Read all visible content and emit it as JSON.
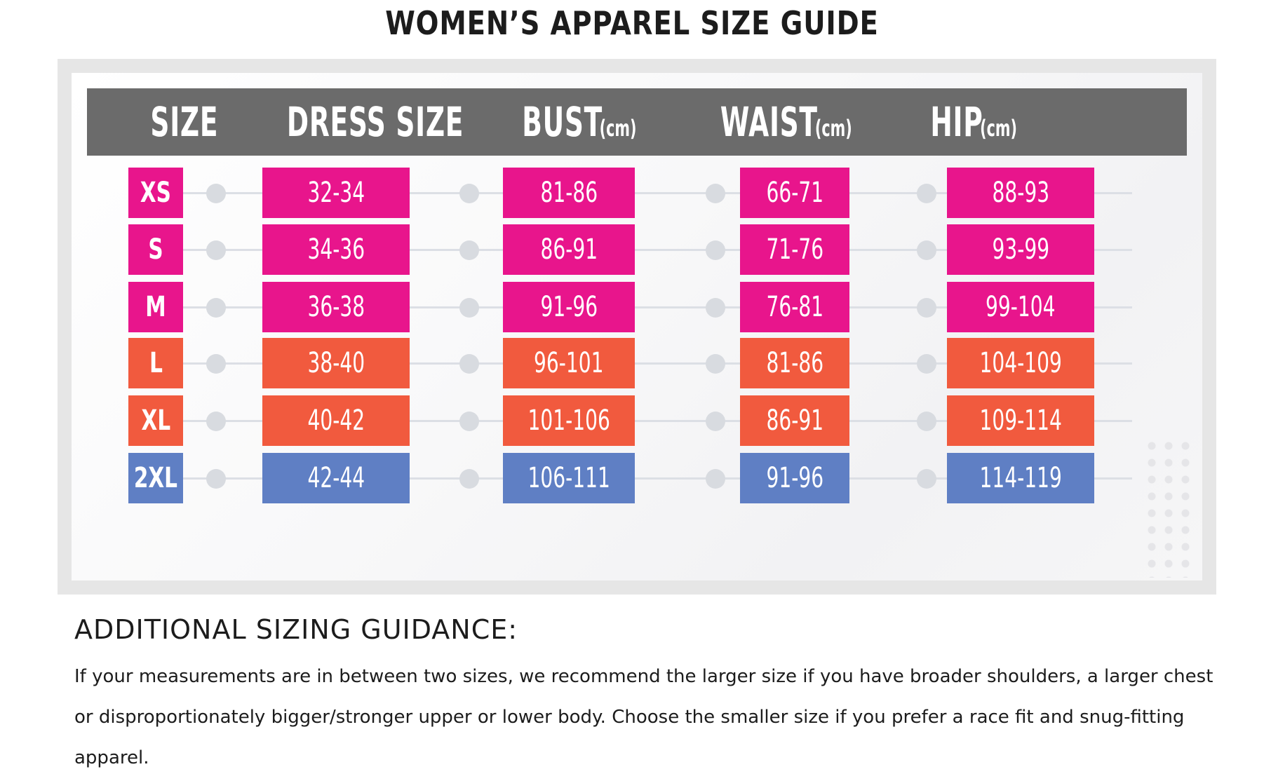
{
  "page": {
    "title": "WOMEN’S APPAREL SIZE GUIDE"
  },
  "table": {
    "columns": [
      {
        "label": "SIZE",
        "unit": ""
      },
      {
        "label": "DRESS SIZE",
        "unit": ""
      },
      {
        "label": "BUST",
        "unit": "(cm)"
      },
      {
        "label": "WAIST",
        "unit": "(cm)"
      },
      {
        "label": "HIP",
        "unit": "(cm)"
      }
    ],
    "rows": [
      {
        "size": "XS",
        "dress": "32-34",
        "bust": "81-86",
        "waist": "66-71",
        "hip": "88-93",
        "color": "#e8158c"
      },
      {
        "size": "S",
        "dress": "34-36",
        "bust": "86-91",
        "waist": "71-76",
        "hip": "93-99",
        "color": "#e8158c"
      },
      {
        "size": "M",
        "dress": "36-38",
        "bust": "91-96",
        "waist": "76-81",
        "hip": "99-104",
        "color": "#e8158c"
      },
      {
        "size": "L",
        "dress": "38-40",
        "bust": "96-101",
        "waist": "81-86",
        "hip": "104-109",
        "color": "#f15a3e"
      },
      {
        "size": "XL",
        "dress": "40-42",
        "bust": "101-106",
        "waist": "86-91",
        "hip": "109-114",
        "color": "#f15a3e"
      },
      {
        "size": "2XL",
        "dress": "42-44",
        "bust": "106-111",
        "waist": "91-96",
        "hip": "114-119",
        "color": "#5f7fc4"
      }
    ]
  },
  "guidance": {
    "title": "ADDITIONAL SIZING GUIDANCE:",
    "body": "If your measurements are in between two sizes, we recommend the larger size if you have broader shoulders, a larger chest or disproportionately bigger/stronger upper or lower body. Choose the smaller size if you prefer a race fit and snug-fitting apparel."
  }
}
